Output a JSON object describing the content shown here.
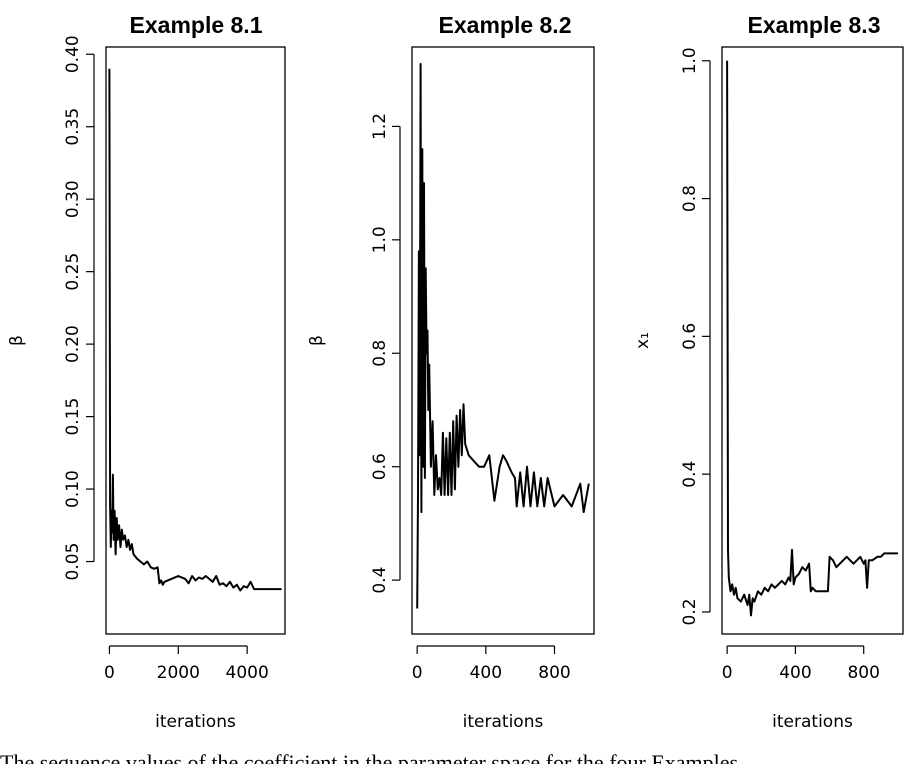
{
  "chart_data": [
    {
      "type": "line",
      "title": "Example 8.1",
      "xlabel": "iterations",
      "ylabel": "β",
      "xlim": [
        -100,
        5100
      ],
      "ylim": [
        0.0,
        0.405
      ],
      "xticks": [
        0,
        2000,
        4000
      ],
      "yticks": [
        0.05,
        0.1,
        0.15,
        0.2,
        0.25,
        0.3,
        0.35,
        0.4
      ],
      "ytick_labels": [
        "0.05",
        "0.10",
        "0.15",
        "0.20",
        "0.25",
        "0.30",
        "0.35",
        "0.40"
      ],
      "series": [
        {
          "x": [
            0,
            20,
            40,
            60,
            80,
            100,
            120,
            150,
            180,
            210,
            240,
            280,
            320,
            360,
            400,
            450,
            500,
            550,
            600,
            650,
            700,
            800,
            900,
            1000,
            1100,
            1200,
            1300,
            1400,
            1450,
            1500,
            1550,
            1600,
            1800,
            2000,
            2200,
            2300,
            2400,
            2500,
            2600,
            2700,
            2800,
            3000,
            3100,
            3200,
            3300,
            3400,
            3500,
            3600,
            3700,
            3800,
            3900,
            4000,
            4100,
            4200,
            4300,
            4500,
            4700,
            5000
          ],
          "y": [
            0.39,
            0.09,
            0.06,
            0.085,
            0.07,
            0.11,
            0.065,
            0.085,
            0.055,
            0.08,
            0.065,
            0.075,
            0.06,
            0.072,
            0.065,
            0.068,
            0.06,
            0.065,
            0.058,
            0.062,
            0.055,
            0.052,
            0.05,
            0.048,
            0.05,
            0.046,
            0.045,
            0.046,
            0.035,
            0.037,
            0.034,
            0.036,
            0.038,
            0.04,
            0.038,
            0.035,
            0.04,
            0.037,
            0.039,
            0.038,
            0.04,
            0.036,
            0.04,
            0.034,
            0.035,
            0.033,
            0.036,
            0.032,
            0.034,
            0.03,
            0.033,
            0.032,
            0.036,
            0.031,
            0.031,
            0.031,
            0.031,
            0.031
          ]
        }
      ]
    },
    {
      "type": "line",
      "title": "Example 8.2",
      "xlabel": "iterations",
      "ylabel": "β",
      "xlim": [
        -30,
        1030
      ],
      "ylim": [
        0.305,
        1.34
      ],
      "xticks": [
        0,
        400,
        800
      ],
      "yticks": [
        0.4,
        0.6,
        0.8,
        1.0,
        1.2
      ],
      "ytick_labels": [
        "0.4",
        "0.6",
        "0.8",
        "1.0",
        "1.2"
      ],
      "series": [
        {
          "x": [
            0,
            5,
            10,
            15,
            20,
            25,
            30,
            35,
            40,
            45,
            50,
            55,
            60,
            65,
            70,
            80,
            90,
            100,
            110,
            120,
            130,
            140,
            150,
            160,
            170,
            180,
            190,
            200,
            210,
            220,
            230,
            240,
            250,
            260,
            270,
            280,
            300,
            330,
            360,
            390,
            420,
            450,
            480,
            500,
            520,
            550,
            570,
            580,
            600,
            620,
            640,
            660,
            680,
            700,
            720,
            740,
            760,
            800,
            850,
            900,
            950,
            970,
            1000
          ],
          "y": [
            0.35,
            0.55,
            0.98,
            0.62,
            1.31,
            0.52,
            1.16,
            0.6,
            1.1,
            0.58,
            0.95,
            0.8,
            0.84,
            0.7,
            0.78,
            0.6,
            0.68,
            0.55,
            0.62,
            0.56,
            0.58,
            0.55,
            0.66,
            0.55,
            0.65,
            0.55,
            0.66,
            0.55,
            0.68,
            0.56,
            0.69,
            0.6,
            0.7,
            0.62,
            0.71,
            0.64,
            0.62,
            0.61,
            0.6,
            0.6,
            0.62,
            0.54,
            0.6,
            0.62,
            0.61,
            0.59,
            0.58,
            0.53,
            0.59,
            0.53,
            0.6,
            0.53,
            0.59,
            0.53,
            0.58,
            0.53,
            0.58,
            0.53,
            0.55,
            0.53,
            0.57,
            0.52,
            0.57
          ]
        }
      ]
    },
    {
      "type": "line",
      "title": "Example 8.3",
      "xlabel": "iterations",
      "ylabel": "x₁",
      "xlim": [
        -30,
        1030
      ],
      "ylim": [
        0.168,
        1.02
      ],
      "xticks": [
        0,
        400,
        800
      ],
      "yticks": [
        0.2,
        0.4,
        0.6,
        0.8,
        1.0
      ],
      "ytick_labels": [
        "0.2",
        "0.4",
        "0.6",
        "0.8",
        "1.0"
      ],
      "series": [
        {
          "x": [
            0,
            5,
            10,
            20,
            30,
            40,
            50,
            60,
            80,
            100,
            120,
            130,
            140,
            150,
            160,
            180,
            200,
            220,
            240,
            260,
            280,
            300,
            320,
            340,
            360,
            370,
            380,
            390,
            400,
            420,
            440,
            460,
            480,
            490,
            500,
            520,
            550,
            590,
            600,
            620,
            640,
            660,
            680,
            700,
            720,
            740,
            760,
            780,
            800,
            810,
            820,
            830,
            850,
            880,
            900,
            920,
            950,
            1000
          ],
          "y": [
            1.0,
            0.29,
            0.25,
            0.23,
            0.24,
            0.225,
            0.235,
            0.22,
            0.215,
            0.225,
            0.21,
            0.225,
            0.195,
            0.22,
            0.215,
            0.23,
            0.225,
            0.235,
            0.23,
            0.24,
            0.235,
            0.24,
            0.245,
            0.24,
            0.25,
            0.245,
            0.29,
            0.24,
            0.25,
            0.255,
            0.265,
            0.26,
            0.27,
            0.23,
            0.235,
            0.23,
            0.23,
            0.23,
            0.28,
            0.275,
            0.265,
            0.27,
            0.275,
            0.28,
            0.275,
            0.27,
            0.275,
            0.28,
            0.27,
            0.275,
            0.235,
            0.275,
            0.275,
            0.28,
            0.28,
            0.285,
            0.285,
            0.285
          ]
        }
      ]
    }
  ],
  "caption": "The sequence values of the coefficient in the parameter space for the four Examples"
}
